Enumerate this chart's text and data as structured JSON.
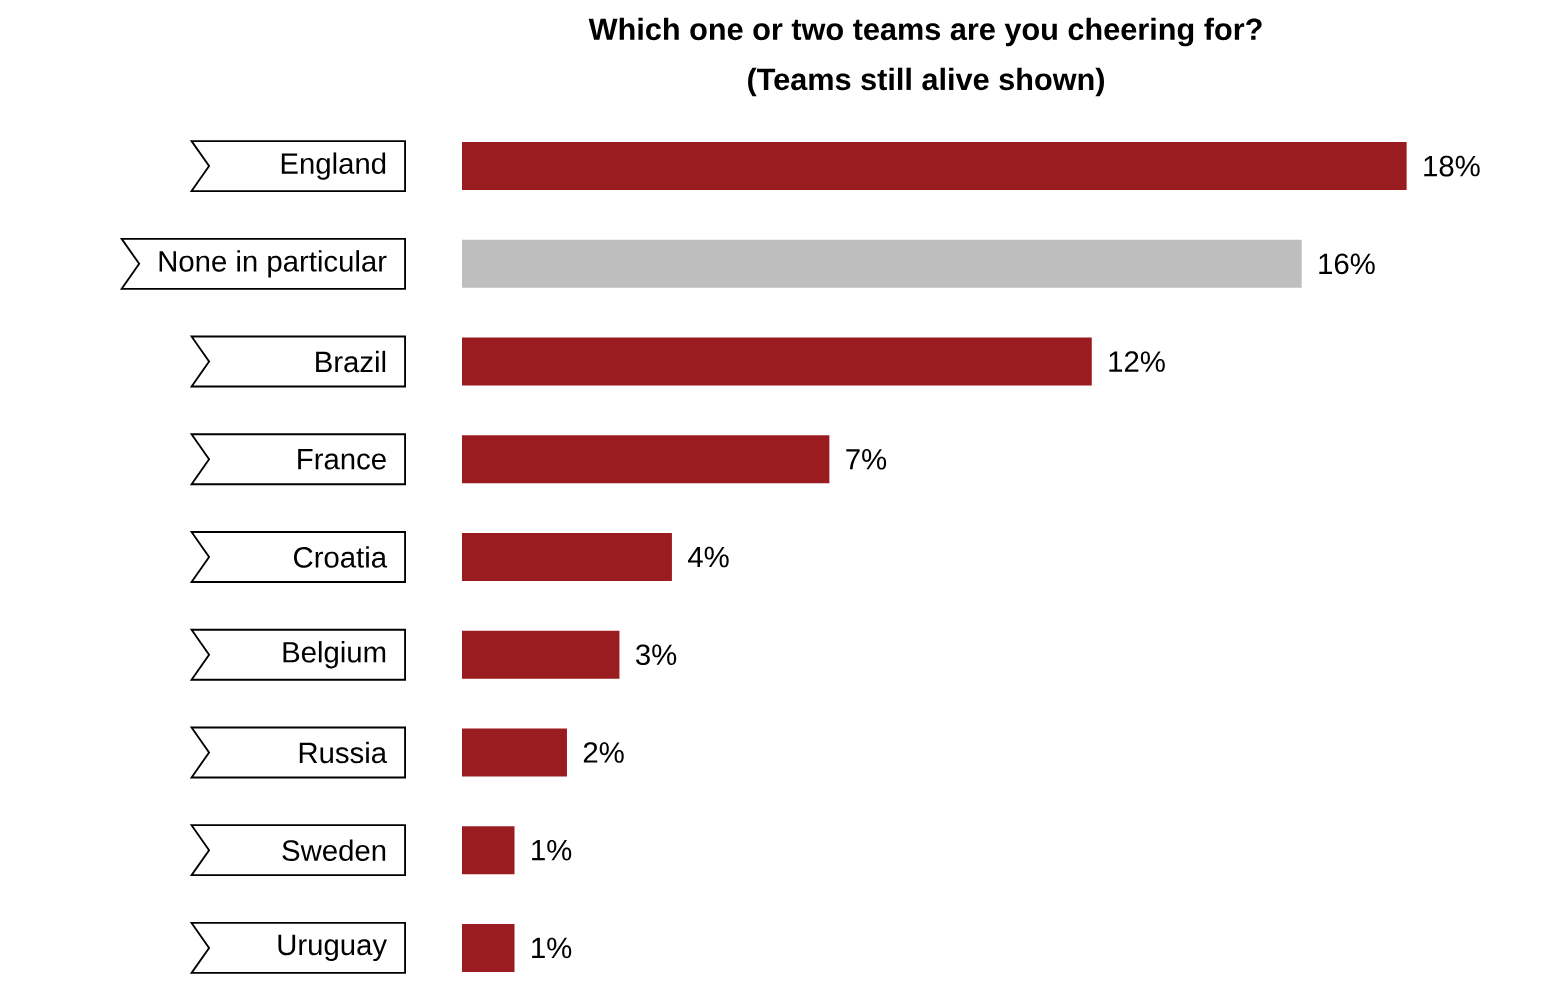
{
  "chart_data": {
    "type": "bar",
    "orientation": "horizontal",
    "title": "Which one or two teams are you cheering for?",
    "subtitle": "(Teams still alive shown)",
    "categories": [
      "England",
      "None in particular",
      "Brazil",
      "France",
      "Croatia",
      "Belgium",
      "Russia",
      "Sweden",
      "Uruguay"
    ],
    "values": [
      18,
      16,
      12,
      7,
      4,
      3,
      2,
      1,
      1
    ],
    "colors": [
      "#9b1c20",
      "#bebebe",
      "#9b1c20",
      "#9b1c20",
      "#9b1c20",
      "#9b1c20",
      "#9b1c20",
      "#9b1c20",
      "#9b1c20"
    ],
    "value_labels": [
      "18%",
      "16%",
      "12%",
      "7%",
      "4%",
      "3%",
      "2%",
      "1%",
      "1%"
    ]
  }
}
